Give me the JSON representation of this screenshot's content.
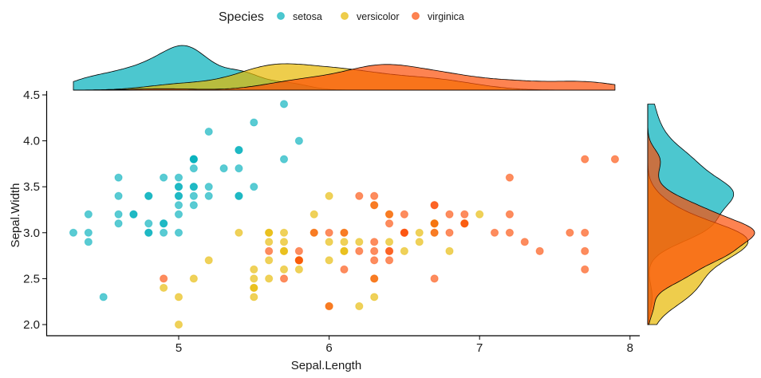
{
  "chart_data": {
    "type": "scatter",
    "title": "",
    "xlabel": "Sepal.Length",
    "ylabel": "Sepal.Width",
    "xlim": [
      4.13,
      8.07
    ],
    "ylim": [
      1.88,
      4.52
    ],
    "xticks": [
      "5",
      "6",
      "7",
      "8"
    ],
    "yticks": [
      "2.0",
      "2.5",
      "3.0",
      "3.5",
      "4.0",
      "4.5"
    ],
    "grid": false,
    "legend": {
      "title": "Species",
      "position": "top"
    },
    "marginal": "density",
    "series": [
      {
        "name": "setosa",
        "color": "#00AFBB",
        "points": [
          [
            5.1,
            3.5
          ],
          [
            4.9,
            3.0
          ],
          [
            4.7,
            3.2
          ],
          [
            4.6,
            3.1
          ],
          [
            5.0,
            3.6
          ],
          [
            5.4,
            3.9
          ],
          [
            4.6,
            3.4
          ],
          [
            5.0,
            3.4
          ],
          [
            4.4,
            2.9
          ],
          [
            4.9,
            3.1
          ],
          [
            5.4,
            3.7
          ],
          [
            4.8,
            3.4
          ],
          [
            4.8,
            3.0
          ],
          [
            4.3,
            3.0
          ],
          [
            5.8,
            4.0
          ],
          [
            5.7,
            4.4
          ],
          [
            5.4,
            3.9
          ],
          [
            5.1,
            3.5
          ],
          [
            5.7,
            3.8
          ],
          [
            5.1,
            3.8
          ],
          [
            5.4,
            3.4
          ],
          [
            5.1,
            3.7
          ],
          [
            4.6,
            3.6
          ],
          [
            5.1,
            3.3
          ],
          [
            4.8,
            3.4
          ],
          [
            5.0,
            3.0
          ],
          [
            5.0,
            3.4
          ],
          [
            5.2,
            3.5
          ],
          [
            5.2,
            3.4
          ],
          [
            4.7,
            3.2
          ],
          [
            4.8,
            3.1
          ],
          [
            5.4,
            3.4
          ],
          [
            5.2,
            4.1
          ],
          [
            5.5,
            4.2
          ],
          [
            4.9,
            3.1
          ],
          [
            5.0,
            3.2
          ],
          [
            5.5,
            3.5
          ],
          [
            4.9,
            3.6
          ],
          [
            4.4,
            3.0
          ],
          [
            5.1,
            3.4
          ],
          [
            5.0,
            3.5
          ],
          [
            4.5,
            2.3
          ],
          [
            4.4,
            3.2
          ],
          [
            5.0,
            3.5
          ],
          [
            5.1,
            3.8
          ],
          [
            4.8,
            3.0
          ],
          [
            5.1,
            3.8
          ],
          [
            4.6,
            3.2
          ],
          [
            5.3,
            3.7
          ],
          [
            5.0,
            3.3
          ]
        ]
      },
      {
        "name": "versicolor",
        "color": "#E7B800",
        "points": [
          [
            7.0,
            3.2
          ],
          [
            6.4,
            3.2
          ],
          [
            6.9,
            3.1
          ],
          [
            5.5,
            2.3
          ],
          [
            6.5,
            2.8
          ],
          [
            5.7,
            2.8
          ],
          [
            6.3,
            3.3
          ],
          [
            4.9,
            2.4
          ],
          [
            6.6,
            2.9
          ],
          [
            5.2,
            2.7
          ],
          [
            5.0,
            2.0
          ],
          [
            5.9,
            3.0
          ],
          [
            6.0,
            2.2
          ],
          [
            6.1,
            2.9
          ],
          [
            5.6,
            2.9
          ],
          [
            6.7,
            3.1
          ],
          [
            5.6,
            3.0
          ],
          [
            5.8,
            2.7
          ],
          [
            6.2,
            2.2
          ],
          [
            5.6,
            2.5
          ],
          [
            5.9,
            3.2
          ],
          [
            6.1,
            2.8
          ],
          [
            6.3,
            2.5
          ],
          [
            6.1,
            2.8
          ],
          [
            6.4,
            2.9
          ],
          [
            6.6,
            3.0
          ],
          [
            6.8,
            2.8
          ],
          [
            6.7,
            3.0
          ],
          [
            6.0,
            2.9
          ],
          [
            5.7,
            2.6
          ],
          [
            5.5,
            2.4
          ],
          [
            5.5,
            2.4
          ],
          [
            5.8,
            2.7
          ],
          [
            6.0,
            2.7
          ],
          [
            5.4,
            3.0
          ],
          [
            6.0,
            3.4
          ],
          [
            6.7,
            3.1
          ],
          [
            6.3,
            2.3
          ],
          [
            5.6,
            3.0
          ],
          [
            5.5,
            2.5
          ],
          [
            5.5,
            2.6
          ],
          [
            6.1,
            3.0
          ],
          [
            5.8,
            2.6
          ],
          [
            5.0,
            2.3
          ],
          [
            5.6,
            2.7
          ],
          [
            5.7,
            3.0
          ],
          [
            5.7,
            2.9
          ],
          [
            6.2,
            2.9
          ],
          [
            5.1,
            2.5
          ],
          [
            5.7,
            2.8
          ]
        ]
      },
      {
        "name": "virginica",
        "color": "#FC4E07",
        "points": [
          [
            6.3,
            3.3
          ],
          [
            5.8,
            2.7
          ],
          [
            7.1,
            3.0
          ],
          [
            6.3,
            2.9
          ],
          [
            6.5,
            3.0
          ],
          [
            7.6,
            3.0
          ],
          [
            4.9,
            2.5
          ],
          [
            7.3,
            2.9
          ],
          [
            6.7,
            2.5
          ],
          [
            7.2,
            3.6
          ],
          [
            6.5,
            3.2
          ],
          [
            6.4,
            2.7
          ],
          [
            6.8,
            3.0
          ],
          [
            5.7,
            2.5
          ],
          [
            5.8,
            2.8
          ],
          [
            6.4,
            3.2
          ],
          [
            6.5,
            3.0
          ],
          [
            7.7,
            3.8
          ],
          [
            7.7,
            2.6
          ],
          [
            6.0,
            2.2
          ],
          [
            6.9,
            3.2
          ],
          [
            5.6,
            2.8
          ],
          [
            7.7,
            2.8
          ],
          [
            6.3,
            2.7
          ],
          [
            6.7,
            3.3
          ],
          [
            7.2,
            3.2
          ],
          [
            6.2,
            2.8
          ],
          [
            6.1,
            3.0
          ],
          [
            6.4,
            2.8
          ],
          [
            7.2,
            3.0
          ],
          [
            7.4,
            2.8
          ],
          [
            7.9,
            3.8
          ],
          [
            6.4,
            2.8
          ],
          [
            6.3,
            2.8
          ],
          [
            6.1,
            2.6
          ],
          [
            7.7,
            3.0
          ],
          [
            6.3,
            3.4
          ],
          [
            6.4,
            3.1
          ],
          [
            6.0,
            3.0
          ],
          [
            6.9,
            3.1
          ],
          [
            6.7,
            3.1
          ],
          [
            6.9,
            3.1
          ],
          [
            5.8,
            2.7
          ],
          [
            6.8,
            3.2
          ],
          [
            6.7,
            3.3
          ],
          [
            6.7,
            3.0
          ],
          [
            6.3,
            2.5
          ],
          [
            6.5,
            3.0
          ],
          [
            6.2,
            3.4
          ],
          [
            5.9,
            3.0
          ]
        ]
      }
    ]
  }
}
